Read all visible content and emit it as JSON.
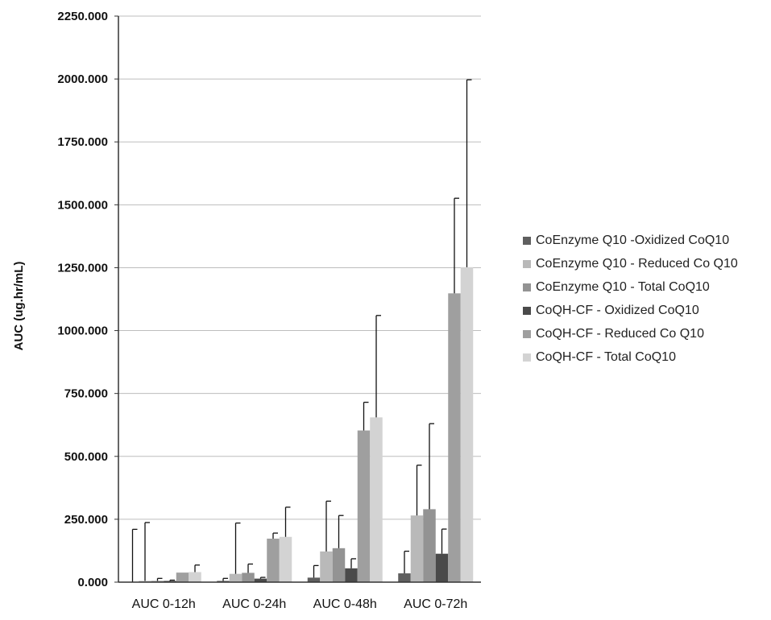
{
  "chart_data": {
    "type": "bar",
    "title": "",
    "xlabel": "",
    "ylabel": "AUC (ug.hr/mL)",
    "ylim": [
      0,
      2250
    ],
    "yticks": [
      "0.000",
      "250.000",
      "500.000",
      "750.000",
      "1000.000",
      "1250.000",
      "1500.000",
      "1750.000",
      "2000.000",
      "2250.000"
    ],
    "grid": true,
    "legend_position": "right",
    "categories": [
      "AUC 0-12h",
      "AUC 0-24h",
      "AUC 0-48h",
      "AUC 0-72h"
    ],
    "series": [
      {
        "name": "CoEnzyme Q10 -Oxidized CoQ10",
        "color": "#5f5f5f",
        "values": [
          0,
          5,
          18,
          35
        ],
        "error": [
          210,
          10,
          48,
          88
        ]
      },
      {
        "name": "CoEnzyme Q10 - Reduced Co Q10",
        "color": "#b9b9b9",
        "values": [
          5,
          33,
          122,
          265
        ],
        "error": [
          232,
          202,
          200,
          200
        ]
      },
      {
        "name": "CoEnzyme Q10 - Total CoQ10",
        "color": "#939393",
        "values": [
          5,
          37,
          135,
          290
        ],
        "error": [
          10,
          35,
          130,
          340
        ]
      },
      {
        "name": "CoQH-CF - Oxidized CoQ10",
        "color": "#4a4a4a",
        "values": [
          5,
          14,
          55,
          113
        ],
        "error": [
          3,
          5,
          38,
          98
        ]
      },
      {
        "name": "CoQH-CF - Reduced Co Q10",
        "color": "#9f9f9f",
        "values": [
          38,
          173,
          603,
          1148
        ],
        "error": [
          0,
          22,
          112,
          378
        ]
      },
      {
        "name": "CoQH-CF - Total CoQ10",
        "color": "#d3d3d3",
        "values": [
          40,
          180,
          655,
          1252
        ],
        "error": [
          28,
          118,
          405,
          745
        ]
      }
    ]
  }
}
